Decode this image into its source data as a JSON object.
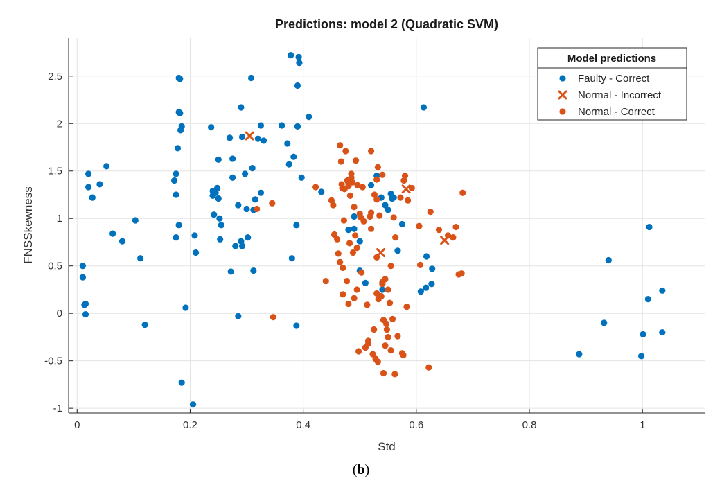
{
  "chart_data": {
    "type": "scatter",
    "title": "Predictions: model 2 (Quadratic SVM)",
    "xlabel": "Std",
    "ylabel": "FNSSkewness",
    "xlim": [
      -0.015,
      1.11
    ],
    "ylim": [
      -1.05,
      2.9
    ],
    "xticks": [
      0,
      0.2,
      0.4,
      0.6,
      0.8,
      1
    ],
    "xtick_labels": [
      "0",
      "0.2",
      "0.4",
      "0.6",
      "0.8",
      "1"
    ],
    "yticks": [
      -1,
      -0.5,
      0,
      0.5,
      1,
      1.5,
      2,
      2.5
    ],
    "ytick_labels": [
      "-1",
      "-0.5",
      "0",
      "0.5",
      "1",
      "1.5",
      "2",
      "2.5"
    ],
    "grid": true,
    "legend": {
      "title": "Model predictions",
      "position": "top-right"
    },
    "caption": {
      "prefix": "(",
      "letter": "b",
      "suffix": ")"
    },
    "series": [
      {
        "name": "Faulty - Correct",
        "marker": "dot",
        "color": "#0072bd",
        "points": [
          [
            0.01,
            0.5
          ],
          [
            0.01,
            0.38
          ],
          [
            0.013,
            0.09
          ],
          [
            0.015,
            0.1
          ],
          [
            0.015,
            -0.01
          ],
          [
            0.02,
            1.47
          ],
          [
            0.02,
            1.33
          ],
          [
            0.027,
            1.22
          ],
          [
            0.04,
            1.36
          ],
          [
            0.052,
            1.55
          ],
          [
            0.063,
            0.84
          ],
          [
            0.08,
            0.76
          ],
          [
            0.103,
            0.98
          ],
          [
            0.112,
            0.58
          ],
          [
            0.12,
            -0.12
          ],
          [
            0.172,
            1.4
          ],
          [
            0.175,
            1.47
          ],
          [
            0.175,
            1.25
          ],
          [
            0.175,
            0.8
          ],
          [
            0.178,
            1.74
          ],
          [
            0.18,
            2.48
          ],
          [
            0.182,
            2.47
          ],
          [
            0.18,
            2.12
          ],
          [
            0.182,
            2.11
          ],
          [
            0.183,
            1.93
          ],
          [
            0.185,
            1.97
          ],
          [
            0.18,
            0.93
          ],
          [
            0.185,
            -0.73
          ],
          [
            0.192,
            0.06
          ],
          [
            0.205,
            -0.96
          ],
          [
            0.208,
            0.82
          ],
          [
            0.21,
            0.64
          ],
          [
            0.237,
            1.96
          ],
          [
            0.24,
            1.24
          ],
          [
            0.24,
            1.29
          ],
          [
            0.242,
            1.04
          ],
          [
            0.245,
            1.27
          ],
          [
            0.248,
            1.32
          ],
          [
            0.25,
            1.62
          ],
          [
            0.25,
            1.21
          ],
          [
            0.252,
            1.0
          ],
          [
            0.253,
            0.78
          ],
          [
            0.255,
            0.93
          ],
          [
            0.27,
            1.85
          ],
          [
            0.272,
            0.44
          ],
          [
            0.275,
            1.63
          ],
          [
            0.275,
            1.43
          ],
          [
            0.28,
            0.71
          ],
          [
            0.285,
            1.14
          ],
          [
            0.285,
            -0.03
          ],
          [
            0.29,
            2.17
          ],
          [
            0.29,
            0.76
          ],
          [
            0.292,
            0.71
          ],
          [
            0.292,
            1.86
          ],
          [
            0.297,
            1.47
          ],
          [
            0.3,
            1.1
          ],
          [
            0.302,
            0.8
          ],
          [
            0.308,
            2.48
          ],
          [
            0.31,
            1.53
          ],
          [
            0.312,
            0.45
          ],
          [
            0.312,
            1.09
          ],
          [
            0.315,
            1.2
          ],
          [
            0.32,
            1.84
          ],
          [
            0.325,
            1.98
          ],
          [
            0.325,
            1.27
          ],
          [
            0.33,
            1.82
          ],
          [
            0.362,
            1.98
          ],
          [
            0.372,
            1.79
          ],
          [
            0.375,
            1.57
          ],
          [
            0.378,
            2.72
          ],
          [
            0.38,
            0.58
          ],
          [
            0.383,
            1.65
          ],
          [
            0.388,
            0.93
          ],
          [
            0.388,
            -0.13
          ],
          [
            0.39,
            2.4
          ],
          [
            0.39,
            1.97
          ],
          [
            0.392,
            2.7
          ],
          [
            0.393,
            2.64
          ],
          [
            0.397,
            1.43
          ],
          [
            0.41,
            2.07
          ],
          [
            0.432,
            1.28
          ],
          [
            0.48,
            0.88
          ],
          [
            0.49,
            0.89
          ],
          [
            0.49,
            1.02
          ],
          [
            0.5,
            0.45
          ],
          [
            0.5,
            0.76
          ],
          [
            0.51,
            0.32
          ],
          [
            0.52,
            1.35
          ],
          [
            0.53,
            1.45
          ],
          [
            0.538,
            1.22
          ],
          [
            0.54,
            0.25
          ],
          [
            0.545,
            1.14
          ],
          [
            0.55,
            1.09
          ],
          [
            0.555,
            1.26
          ],
          [
            0.557,
            1.21
          ],
          [
            0.56,
            1.22
          ],
          [
            0.567,
            0.66
          ],
          [
            0.575,
            0.94
          ],
          [
            0.608,
            0.23
          ],
          [
            0.613,
            2.17
          ],
          [
            0.617,
            0.27
          ],
          [
            0.618,
            0.6
          ],
          [
            0.627,
            0.31
          ],
          [
            0.628,
            0.47
          ],
          [
            0.888,
            -0.43
          ],
          [
            0.932,
            -0.1
          ],
          [
            0.94,
            0.56
          ],
          [
            0.998,
            -0.45
          ],
          [
            1.001,
            -0.22
          ],
          [
            1.01,
            0.15
          ],
          [
            1.012,
            0.91
          ],
          [
            1.035,
            0.24
          ],
          [
            1.035,
            -0.2
          ]
        ]
      },
      {
        "name": "Normal - Incorrect",
        "marker": "cross",
        "color": "#d95319",
        "points": [
          [
            0.305,
            1.87
          ],
          [
            0.537,
            0.64
          ],
          [
            0.582,
            1.31
          ],
          [
            0.65,
            0.77
          ]
        ]
      },
      {
        "name": "Normal - Correct",
        "marker": "dot",
        "color": "#d95319",
        "points": [
          [
            0.318,
            1.1
          ],
          [
            0.345,
            1.16
          ],
          [
            0.347,
            -0.04
          ],
          [
            0.422,
            1.33
          ],
          [
            0.44,
            0.34
          ],
          [
            0.45,
            1.19
          ],
          [
            0.453,
            1.14
          ],
          [
            0.455,
            0.83
          ],
          [
            0.46,
            0.78
          ],
          [
            0.462,
            0.63
          ],
          [
            0.465,
            0.54
          ],
          [
            0.465,
            1.77
          ],
          [
            0.467,
            1.6
          ],
          [
            0.468,
            1.36
          ],
          [
            0.469,
            1.32
          ],
          [
            0.47,
            0.48
          ],
          [
            0.47,
            0.2
          ],
          [
            0.472,
            0.98
          ],
          [
            0.473,
            1.31
          ],
          [
            0.475,
            1.71
          ],
          [
            0.477,
            0.34
          ],
          [
            0.478,
            1.4
          ],
          [
            0.48,
            1.37
          ],
          [
            0.48,
            1.34
          ],
          [
            0.48,
            0.1
          ],
          [
            0.482,
            0.74
          ],
          [
            0.483,
            1.24
          ],
          [
            0.485,
            1.43
          ],
          [
            0.485,
            1.47
          ],
          [
            0.487,
            1.38
          ],
          [
            0.488,
            0.64
          ],
          [
            0.49,
            0.16
          ],
          [
            0.49,
            1.12
          ],
          [
            0.492,
            0.82
          ],
          [
            0.493,
            1.61
          ],
          [
            0.495,
            0.69
          ],
          [
            0.495,
            0.25
          ],
          [
            0.496,
            1.35
          ],
          [
            0.498,
            -0.4
          ],
          [
            0.5,
            1.05
          ],
          [
            0.502,
            1.01
          ],
          [
            0.503,
            0.43
          ],
          [
            0.505,
            1.33
          ],
          [
            0.507,
            0.97
          ],
          [
            0.51,
            -0.36
          ],
          [
            0.513,
            0.09
          ],
          [
            0.515,
            -0.29
          ],
          [
            0.515,
            -0.32
          ],
          [
            0.518,
            1.02
          ],
          [
            0.52,
            1.06
          ],
          [
            0.52,
            0.89
          ],
          [
            0.52,
            1.71
          ],
          [
            0.523,
            -0.43
          ],
          [
            0.525,
            -0.17
          ],
          [
            0.526,
            1.25
          ],
          [
            0.528,
            -0.48
          ],
          [
            0.53,
            1.2
          ],
          [
            0.53,
            1.41
          ],
          [
            0.53,
            0.21
          ],
          [
            0.53,
            0.59
          ],
          [
            0.532,
            1.54
          ],
          [
            0.532,
            -0.51
          ],
          [
            0.533,
            0.15
          ],
          [
            0.535,
            1.03
          ],
          [
            0.538,
            0.18
          ],
          [
            0.54,
            1.46
          ],
          [
            0.54,
            0.33
          ],
          [
            0.54,
            0.31
          ],
          [
            0.542,
            -0.63
          ],
          [
            0.542,
            -0.07
          ],
          [
            0.545,
            0.36
          ],
          [
            0.545,
            -0.34
          ],
          [
            0.547,
            -0.11
          ],
          [
            0.548,
            -0.17
          ],
          [
            0.55,
            0.25
          ],
          [
            0.55,
            -0.25
          ],
          [
            0.553,
            0.11
          ],
          [
            0.555,
            0.5
          ],
          [
            0.555,
            -0.39
          ],
          [
            0.558,
            -0.06
          ],
          [
            0.56,
            1.01
          ],
          [
            0.562,
            -0.64
          ],
          [
            0.563,
            0.8
          ],
          [
            0.567,
            -0.24
          ],
          [
            0.572,
            1.22
          ],
          [
            0.575,
            -0.42
          ],
          [
            0.577,
            -0.44
          ],
          [
            0.578,
            1.4
          ],
          [
            0.58,
            1.45
          ],
          [
            0.583,
            0.07
          ],
          [
            0.585,
            1.19
          ],
          [
            0.592,
            1.32
          ],
          [
            0.605,
            0.92
          ],
          [
            0.607,
            0.51
          ],
          [
            0.622,
            -0.57
          ],
          [
            0.625,
            1.07
          ],
          [
            0.64,
            0.88
          ],
          [
            0.656,
            0.82
          ],
          [
            0.665,
            0.8
          ],
          [
            0.67,
            0.91
          ],
          [
            0.675,
            0.41
          ],
          [
            0.68,
            0.42
          ],
          [
            0.682,
            1.27
          ]
        ]
      }
    ]
  }
}
